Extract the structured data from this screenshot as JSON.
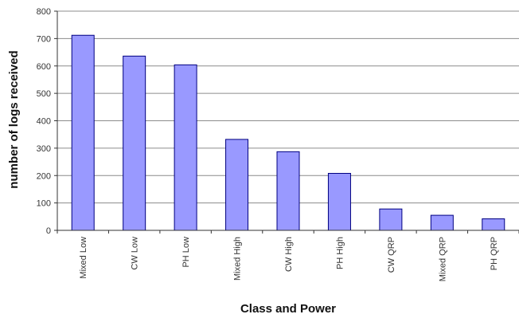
{
  "chart_data": {
    "type": "bar",
    "title": "",
    "xlabel": "Class and Power",
    "ylabel": "number of logs received",
    "categories": [
      "Mixed Low",
      "CW Low",
      "PH Low",
      "Mixed High",
      "CW High",
      "PH High",
      "CW QRP",
      "Mixed QRP",
      "PH QRP"
    ],
    "values": [
      712,
      636,
      604,
      332,
      287,
      208,
      78,
      55,
      42
    ],
    "ylim": [
      0,
      800
    ],
    "yticks": [
      "0",
      "100",
      "200",
      "300",
      "400",
      "500",
      "600",
      "700",
      "800"
    ],
    "grid": true,
    "legend": "none",
    "colors": {
      "bar_fill": "#9999ff",
      "bar_stroke": "#000080",
      "grid": "#8c8c8c",
      "axis": "#333333"
    }
  }
}
